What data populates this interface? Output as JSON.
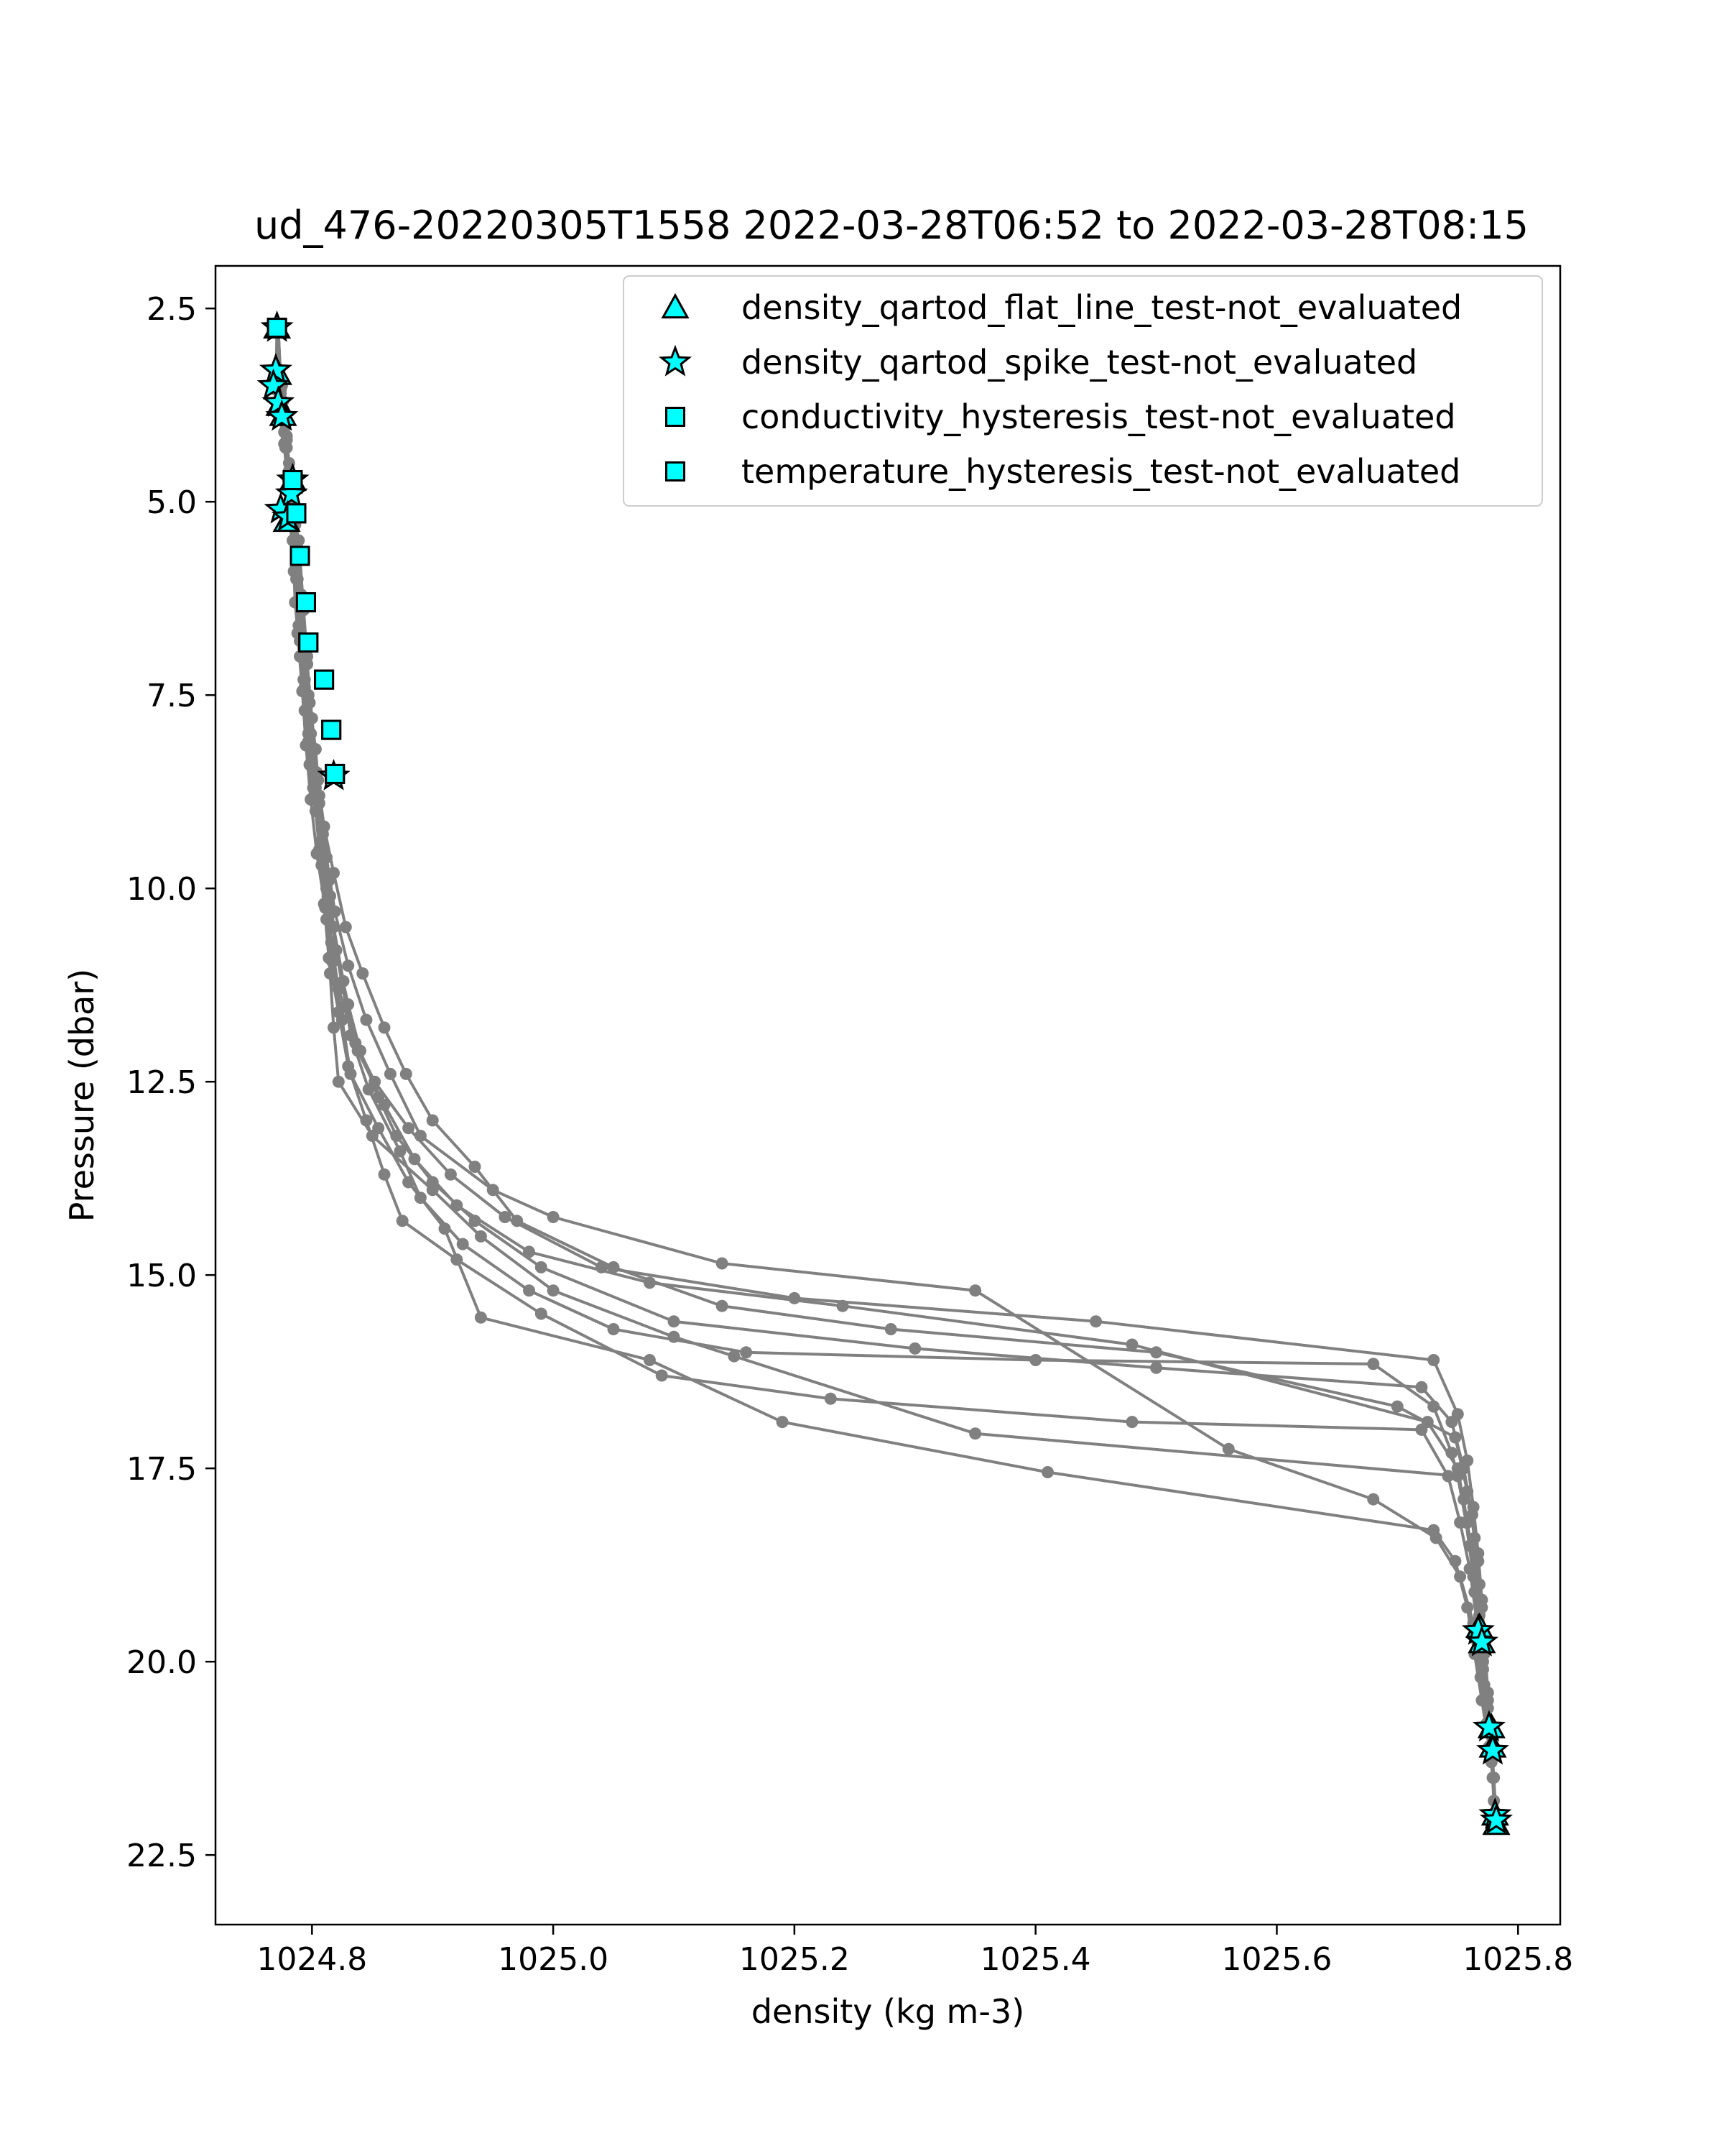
{
  "chart_data": {
    "type": "scatter",
    "title": "ud_476-20220305T1558 2022-03-28T06:52 to 2022-03-28T08:15",
    "xlabel": "density (kg m-3)",
    "ylabel": "Pressure (dbar)",
    "xlim": [
      1024.72,
      1025.835
    ],
    "ylim": [
      23.4,
      1.95
    ],
    "y_inverted": true,
    "x_ticks": [
      "1024.8",
      "1025.0",
      "1025.2",
      "1025.4",
      "1025.6",
      "1025.8"
    ],
    "y_ticks": [
      "2.5",
      "5.0",
      "7.5",
      "10.0",
      "12.5",
      "15.0",
      "17.5",
      "20.0",
      "22.5"
    ],
    "legend_position": "upper right",
    "profile_color": "#808080",
    "flag_color": "#00ffff",
    "profiles": [
      [
        [
          1024.77,
          2.75
        ],
        [
          1024.773,
          3.3
        ],
        [
          1024.776,
          3.8
        ],
        [
          1024.779,
          4.3
        ],
        [
          1024.783,
          4.8
        ],
        [
          1024.788,
          5.6
        ],
        [
          1024.793,
          6.4
        ],
        [
          1024.796,
          7.0
        ],
        [
          1024.798,
          7.6
        ],
        [
          1024.803,
          8.2
        ],
        [
          1024.806,
          8.8
        ],
        [
          1024.81,
          9.5
        ],
        [
          1024.815,
          10.1
        ],
        [
          1024.82,
          10.8
        ],
        [
          1024.83,
          11.5
        ],
        [
          1024.84,
          12.1
        ],
        [
          1024.855,
          12.7
        ],
        [
          1024.87,
          13.2
        ],
        [
          1024.9,
          13.8
        ],
        [
          1024.935,
          14.3
        ],
        [
          1024.99,
          14.9
        ],
        [
          1025.1,
          15.6
        ],
        [
          1025.3,
          15.95
        ],
        [
          1025.5,
          16.2
        ],
        [
          1025.72,
          16.45
        ],
        [
          1025.745,
          16.9
        ],
        [
          1025.755,
          17.5
        ],
        [
          1025.762,
          18.1
        ],
        [
          1025.767,
          18.7
        ],
        [
          1025.77,
          19.3
        ],
        [
          1025.772,
          19.9
        ],
        [
          1025.775,
          20.5
        ],
        [
          1025.778,
          21.1
        ],
        [
          1025.779,
          21.5
        ]
      ],
      [
        [
          1024.771,
          2.75
        ],
        [
          1024.77,
          3.55
        ],
        [
          1024.777,
          4.1
        ],
        [
          1024.782,
          4.9
        ],
        [
          1024.789,
          5.5
        ],
        [
          1024.791,
          6.2
        ],
        [
          1024.794,
          6.9
        ],
        [
          1024.796,
          7.5
        ],
        [
          1024.799,
          8.0
        ],
        [
          1024.805,
          8.6
        ],
        [
          1024.809,
          9.3
        ],
        [
          1024.814,
          9.9
        ],
        [
          1024.818,
          10.5
        ],
        [
          1024.826,
          11.2
        ],
        [
          1024.832,
          11.9
        ],
        [
          1024.847,
          12.6
        ],
        [
          1024.873,
          13.4
        ],
        [
          1024.89,
          14.0
        ],
        [
          1024.925,
          14.6
        ],
        [
          1024.98,
          15.2
        ],
        [
          1025.05,
          15.7
        ],
        [
          1025.16,
          16.0
        ],
        [
          1025.4,
          16.1
        ],
        [
          1025.68,
          16.15
        ],
        [
          1025.73,
          16.7
        ],
        [
          1025.745,
          17.3
        ],
        [
          1025.755,
          17.9
        ],
        [
          1025.76,
          18.5
        ],
        [
          1025.764,
          19.1
        ],
        [
          1025.766,
          19.6
        ],
        [
          1025.768,
          19.8
        ]
      ],
      [
        [
          1024.772,
          2.75
        ],
        [
          1024.774,
          3.4
        ],
        [
          1024.778,
          4.0
        ],
        [
          1024.781,
          4.6
        ],
        [
          1024.786,
          5.3
        ],
        [
          1024.787,
          6.0
        ],
        [
          1024.79,
          6.8
        ],
        [
          1024.794,
          7.4
        ],
        [
          1024.797,
          8.1
        ],
        [
          1024.801,
          8.7
        ],
        [
          1024.808,
          9.4
        ],
        [
          1024.812,
          10.0
        ],
        [
          1024.816,
          10.7
        ],
        [
          1024.822,
          11.3
        ],
        [
          1024.836,
          12.0
        ],
        [
          1024.852,
          12.5
        ],
        [
          1024.88,
          13.1
        ],
        [
          1024.915,
          13.7
        ],
        [
          1024.96,
          14.25
        ],
        [
          1025.04,
          14.9
        ],
        [
          1025.2,
          15.3
        ],
        [
          1025.45,
          15.6
        ],
        [
          1025.73,
          16.1
        ],
        [
          1025.75,
          16.8
        ],
        [
          1025.758,
          17.4
        ],
        [
          1025.763,
          18.0
        ],
        [
          1025.767,
          18.6
        ],
        [
          1025.77,
          19.2
        ],
        [
          1025.772,
          19.7
        ],
        [
          1025.775,
          20.4
        ],
        [
          1025.778,
          20.9
        ]
      ],
      [
        [
          1024.771,
          2.75
        ],
        [
          1024.775,
          3.5
        ],
        [
          1024.779,
          4.2
        ],
        [
          1024.784,
          5.0
        ],
        [
          1024.79,
          5.7
        ],
        [
          1024.793,
          6.4
        ],
        [
          1024.796,
          7.1
        ],
        [
          1024.8,
          7.8
        ],
        [
          1024.804,
          8.5
        ],
        [
          1024.81,
          9.2
        ],
        [
          1024.818,
          9.8
        ],
        [
          1024.828,
          10.5
        ],
        [
          1024.842,
          11.1
        ],
        [
          1024.86,
          11.8
        ],
        [
          1024.878,
          12.4
        ],
        [
          1024.9,
          13.0
        ],
        [
          1024.935,
          13.6
        ],
        [
          1024.97,
          14.3
        ],
        [
          1025.05,
          14.9
        ],
        [
          1025.14,
          15.4
        ],
        [
          1025.28,
          15.7
        ],
        [
          1025.5,
          16.0
        ],
        [
          1025.7,
          16.7
        ],
        [
          1025.748,
          17.1
        ],
        [
          1025.758,
          17.8
        ],
        [
          1025.764,
          18.4
        ],
        [
          1025.768,
          19.0
        ],
        [
          1025.771,
          19.7
        ]
      ],
      [
        [
          1024.772,
          2.75
        ],
        [
          1024.774,
          3.6
        ],
        [
          1024.778,
          4.3
        ],
        [
          1024.783,
          5.1
        ],
        [
          1024.787,
          5.9
        ],
        [
          1024.79,
          6.6
        ],
        [
          1024.794,
          7.3
        ],
        [
          1024.799,
          8.0
        ],
        [
          1024.803,
          8.7
        ],
        [
          1024.807,
          9.4
        ],
        [
          1024.813,
          10.1
        ],
        [
          1024.82,
          10.8
        ],
        [
          1024.828,
          11.5
        ],
        [
          1024.838,
          12.1
        ],
        [
          1024.86,
          12.8
        ],
        [
          1024.885,
          13.5
        ],
        [
          1024.92,
          14.1
        ],
        [
          1024.98,
          14.7
        ],
        [
          1025.08,
          15.1
        ],
        [
          1025.24,
          15.4
        ],
        [
          1025.48,
          15.9
        ],
        [
          1025.725,
          16.9
        ],
        [
          1025.75,
          17.5
        ],
        [
          1025.758,
          18.2
        ],
        [
          1025.764,
          18.8
        ],
        [
          1025.768,
          19.4
        ],
        [
          1025.771,
          20.0
        ],
        [
          1025.775,
          20.6
        ],
        [
          1025.778,
          21.1
        ]
      ],
      [
        [
          1024.771,
          2.75
        ],
        [
          1024.776,
          3.7
        ],
        [
          1024.781,
          4.5
        ],
        [
          1024.785,
          5.2
        ],
        [
          1024.788,
          6.0
        ],
        [
          1024.792,
          6.8
        ],
        [
          1024.797,
          7.5
        ],
        [
          1024.801,
          8.2
        ],
        [
          1024.806,
          8.9
        ],
        [
          1024.812,
          9.6
        ],
        [
          1024.819,
          10.3
        ],
        [
          1024.83,
          11.0
        ],
        [
          1024.845,
          11.7
        ],
        [
          1024.865,
          12.4
        ],
        [
          1024.89,
          13.2
        ],
        [
          1024.95,
          13.9
        ],
        [
          1025.0,
          14.25
        ],
        [
          1025.14,
          14.85
        ],
        [
          1025.35,
          15.2
        ],
        [
          1025.56,
          17.25
        ],
        [
          1025.68,
          17.9
        ],
        [
          1025.732,
          18.4
        ],
        [
          1025.752,
          18.9
        ],
        [
          1025.763,
          19.5
        ],
        [
          1025.769,
          20.2
        ],
        [
          1025.774,
          20.8
        ],
        [
          1025.778,
          21.3
        ],
        [
          1025.78,
          21.8
        ],
        [
          1025.781,
          22.1
        ]
      ],
      [
        [
          1024.772,
          2.75
        ],
        [
          1024.774,
          3.45
        ],
        [
          1024.779,
          4.15
        ],
        [
          1024.783,
          4.95
        ],
        [
          1024.787,
          5.8
        ],
        [
          1024.789,
          6.6
        ],
        [
          1024.793,
          7.3
        ],
        [
          1024.797,
          8.0
        ],
        [
          1024.802,
          8.8
        ],
        [
          1024.806,
          9.5
        ],
        [
          1024.81,
          10.2
        ],
        [
          1024.814,
          10.9
        ],
        [
          1024.822,
          11.6
        ],
        [
          1024.83,
          12.3
        ],
        [
          1024.845,
          13.0
        ],
        [
          1024.86,
          13.7
        ],
        [
          1024.875,
          14.3
        ],
        [
          1024.92,
          14.8
        ],
        [
          1024.99,
          15.5
        ],
        [
          1025.09,
          16.3
        ],
        [
          1025.23,
          16.6
        ],
        [
          1025.48,
          16.9
        ],
        [
          1025.72,
          17.0
        ],
        [
          1025.742,
          17.6
        ],
        [
          1025.752,
          18.2
        ],
        [
          1025.76,
          18.8
        ],
        [
          1025.766,
          19.5
        ],
        [
          1025.771,
          20.1
        ]
      ],
      [
        [
          1024.771,
          2.75
        ],
        [
          1024.775,
          3.9
        ],
        [
          1024.78,
          4.7
        ],
        [
          1024.784,
          5.5
        ],
        [
          1024.786,
          6.3
        ],
        [
          1024.79,
          7.0
        ],
        [
          1024.794,
          7.7
        ],
        [
          1024.798,
          8.4
        ],
        [
          1024.803,
          9.0
        ],
        [
          1024.808,
          9.7
        ],
        [
          1024.812,
          10.4
        ],
        [
          1024.815,
          11.1
        ],
        [
          1024.818,
          11.8
        ],
        [
          1024.822,
          12.5
        ],
        [
          1024.85,
          13.2
        ],
        [
          1024.9,
          13.9
        ],
        [
          1024.94,
          14.5
        ],
        [
          1025.0,
          15.2
        ],
        [
          1025.1,
          15.8
        ],
        [
          1025.15,
          16.05
        ],
        [
          1025.35,
          17.05
        ],
        [
          1025.75,
          17.6
        ],
        [
          1025.757,
          18.2
        ],
        [
          1025.763,
          18.9
        ],
        [
          1025.768,
          19.6
        ],
        [
          1025.772,
          20.3
        ],
        [
          1025.777,
          20.9
        ],
        [
          1025.78,
          21.5
        ],
        [
          1025.782,
          22.1
        ]
      ],
      [
        [
          1024.772,
          2.75
        ],
        [
          1024.774,
          3.55
        ],
        [
          1024.777,
          4.25
        ],
        [
          1024.781,
          5.05
        ],
        [
          1024.785,
          5.9
        ],
        [
          1024.788,
          6.7
        ],
        [
          1024.792,
          7.45
        ],
        [
          1024.795,
          8.15
        ],
        [
          1024.799,
          8.85
        ],
        [
          1024.804,
          9.55
        ],
        [
          1024.811,
          10.25
        ],
        [
          1024.817,
          10.95
        ],
        [
          1024.825,
          11.7
        ],
        [
          1024.832,
          12.4
        ],
        [
          1024.855,
          13.1
        ],
        [
          1024.88,
          13.8
        ],
        [
          1024.91,
          14.4
        ],
        [
          1024.94,
          15.55
        ],
        [
          1025.08,
          16.1
        ],
        [
          1025.19,
          16.9
        ],
        [
          1025.41,
          17.55
        ],
        [
          1025.73,
          18.3
        ],
        [
          1025.748,
          18.7
        ],
        [
          1025.758,
          19.3
        ],
        [
          1025.764,
          19.9
        ],
        [
          1025.77,
          20.5
        ],
        [
          1025.776,
          21.1
        ]
      ]
    ],
    "series": [
      {
        "name": "density_qartod_flat_line_test-not_evaluated",
        "marker": "triangle",
        "points": [
          [
            1024.771,
            2.75
          ],
          [
            1024.772,
            3.35
          ],
          [
            1024.773,
            3.75
          ],
          [
            1024.776,
            3.88
          ],
          [
            1024.784,
            4.72
          ],
          [
            1024.779,
            5.25
          ],
          [
            1025.768,
            19.55
          ],
          [
            1025.77,
            19.75
          ],
          [
            1025.778,
            20.85
          ],
          [
            1025.779,
            21.1
          ],
          [
            1025.781,
            21.98
          ],
          [
            1025.782,
            22.1
          ]
        ]
      },
      {
        "name": "density_qartod_spike_test-not_evaluated",
        "marker": "star",
        "points": [
          [
            1024.771,
            2.75
          ],
          [
            1024.77,
            3.3
          ],
          [
            1024.768,
            3.5
          ],
          [
            1024.772,
            3.72
          ],
          [
            1024.775,
            3.9
          ],
          [
            1024.784,
            4.72
          ],
          [
            1024.783,
            4.9
          ],
          [
            1024.774,
            5.1
          ],
          [
            1024.78,
            5.2
          ],
          [
            1024.818,
            8.55
          ],
          [
            1025.767,
            19.6
          ],
          [
            1025.77,
            19.75
          ],
          [
            1025.776,
            20.85
          ],
          [
            1025.779,
            21.15
          ],
          [
            1025.781,
            21.98
          ],
          [
            1025.782,
            22.05
          ]
        ]
      },
      {
        "name": "conductivity_hysteresis_test-not_evaluated",
        "marker": "square",
        "points": [
          [
            1024.771,
            2.75
          ],
          [
            1024.784,
            4.72
          ],
          [
            1024.787,
            5.15
          ],
          [
            1024.79,
            5.7
          ],
          [
            1024.795,
            6.3
          ],
          [
            1024.797,
            6.82
          ],
          [
            1024.81,
            7.3
          ],
          [
            1024.816,
            7.95
          ],
          [
            1024.819,
            8.52
          ]
        ]
      },
      {
        "name": "temperature_hysteresis_test-not_evaluated",
        "marker": "square",
        "points": [
          [
            1024.771,
            2.75
          ],
          [
            1024.784,
            4.72
          ],
          [
            1024.787,
            5.15
          ],
          [
            1024.79,
            5.7
          ],
          [
            1024.795,
            6.3
          ],
          [
            1024.797,
            6.82
          ],
          [
            1024.81,
            7.3
          ],
          [
            1024.816,
            7.95
          ],
          [
            1024.819,
            8.52
          ]
        ]
      }
    ]
  }
}
